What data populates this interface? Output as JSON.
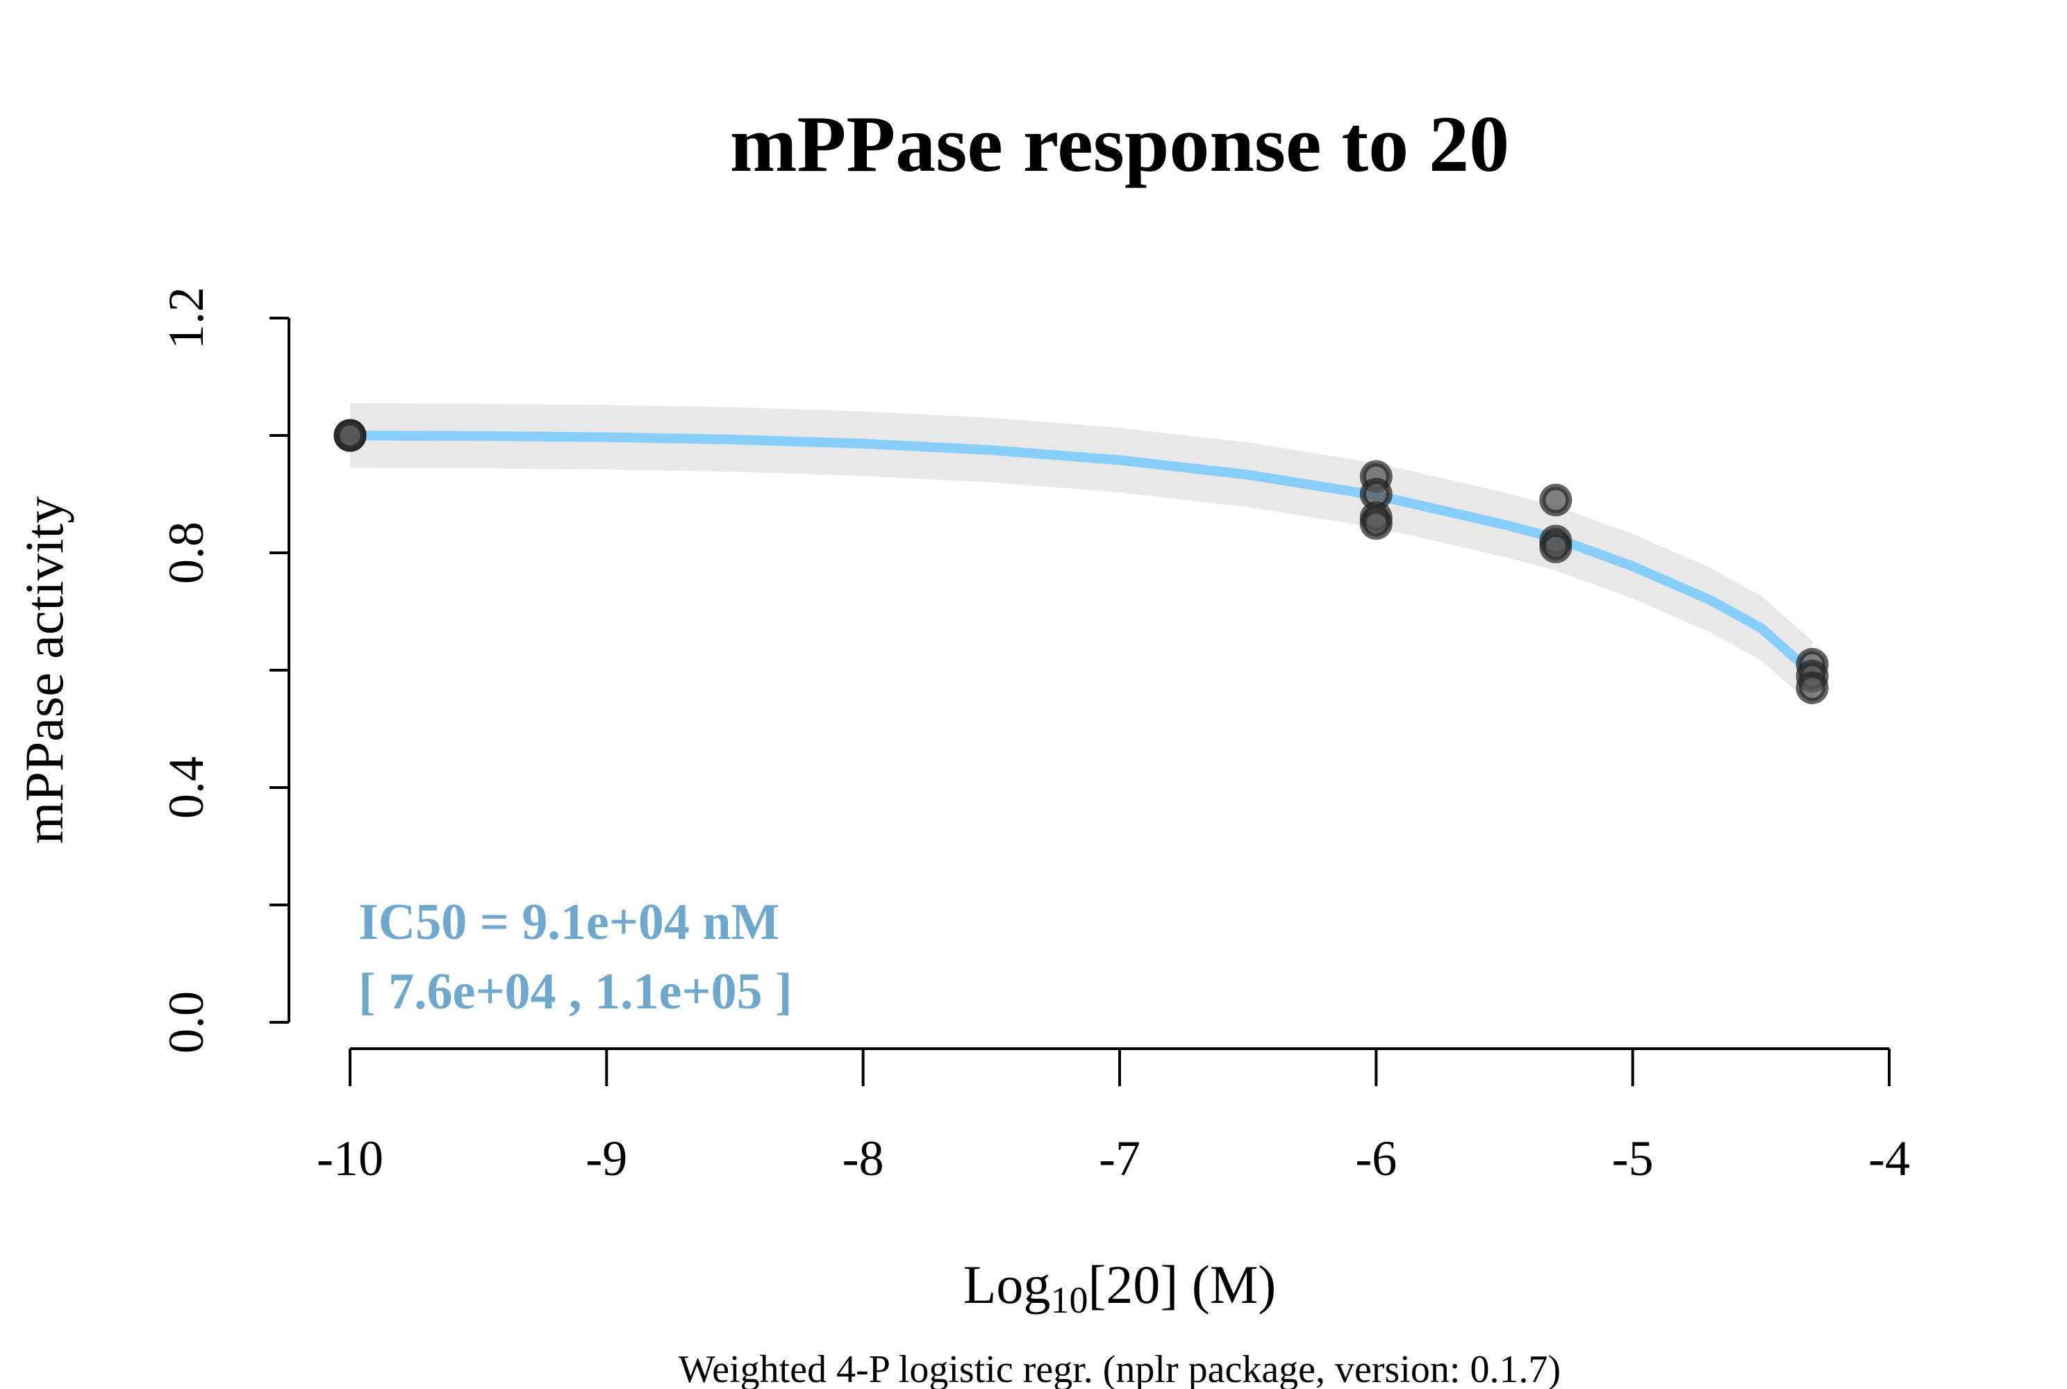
{
  "chart_data": {
    "type": "scatter",
    "title": "mPPase response to 20",
    "xlabel_prefix": "Log",
    "xlabel_sub": "10",
    "xlabel_suffix": "[20] (M)",
    "ylabel": "mPPase activity",
    "caption": "Weighted 4-P logistic regr. (nplr package, version: 0.1.7)",
    "annotation": {
      "line1": "IC50 = 9.1e+04 nM",
      "line2": "[ 7.6e+04 , 1.1e+05 ]"
    },
    "xlim": [
      -10,
      -4
    ],
    "ylim": [
      0,
      1.2
    ],
    "x_ticks": [
      "-10",
      "-9",
      "-8",
      "-7",
      "-6",
      "-5",
      "-4"
    ],
    "y_ticks": [
      "0.0",
      "0.4",
      "0.8",
      "1.2"
    ],
    "y_minor_ticks": [
      0.2,
      0.6,
      1.0
    ],
    "points": [
      {
        "x": -10,
        "y": 1.0
      },
      {
        "x": -10,
        "y": 1.0
      },
      {
        "x": -10,
        "y": 1.0
      },
      {
        "x": -6,
        "y": 0.93
      },
      {
        "x": -6,
        "y": 0.9
      },
      {
        "x": -6,
        "y": 0.86
      },
      {
        "x": -6,
        "y": 0.85
      },
      {
        "x": -5.3,
        "y": 0.89
      },
      {
        "x": -5.3,
        "y": 0.82
      },
      {
        "x": -5.3,
        "y": 0.81
      },
      {
        "x": -4.3,
        "y": 0.61
      },
      {
        "x": -4.3,
        "y": 0.59
      },
      {
        "x": -4.3,
        "y": 0.57
      }
    ],
    "fit_curve": {
      "x": [
        -10,
        -9.5,
        -9,
        -8.5,
        -8,
        -7.5,
        -7,
        -6.5,
        -6,
        -5.5,
        -5.3,
        -5,
        -4.7,
        -4.5,
        -4.3
      ],
      "y": [
        1.0,
        0.999,
        0.997,
        0.993,
        0.986,
        0.975,
        0.958,
        0.933,
        0.898,
        0.848,
        0.825,
        0.777,
        0.72,
        0.672,
        0.595
      ]
    },
    "confidence_band_halfwidth": 0.055,
    "colors": {
      "fit_line": "#87CEFA",
      "band": "#E8E8E8",
      "points_fill": "#555555",
      "points_stroke": "#222222",
      "annotation": "#6FA8CC"
    },
    "grid": false
  }
}
